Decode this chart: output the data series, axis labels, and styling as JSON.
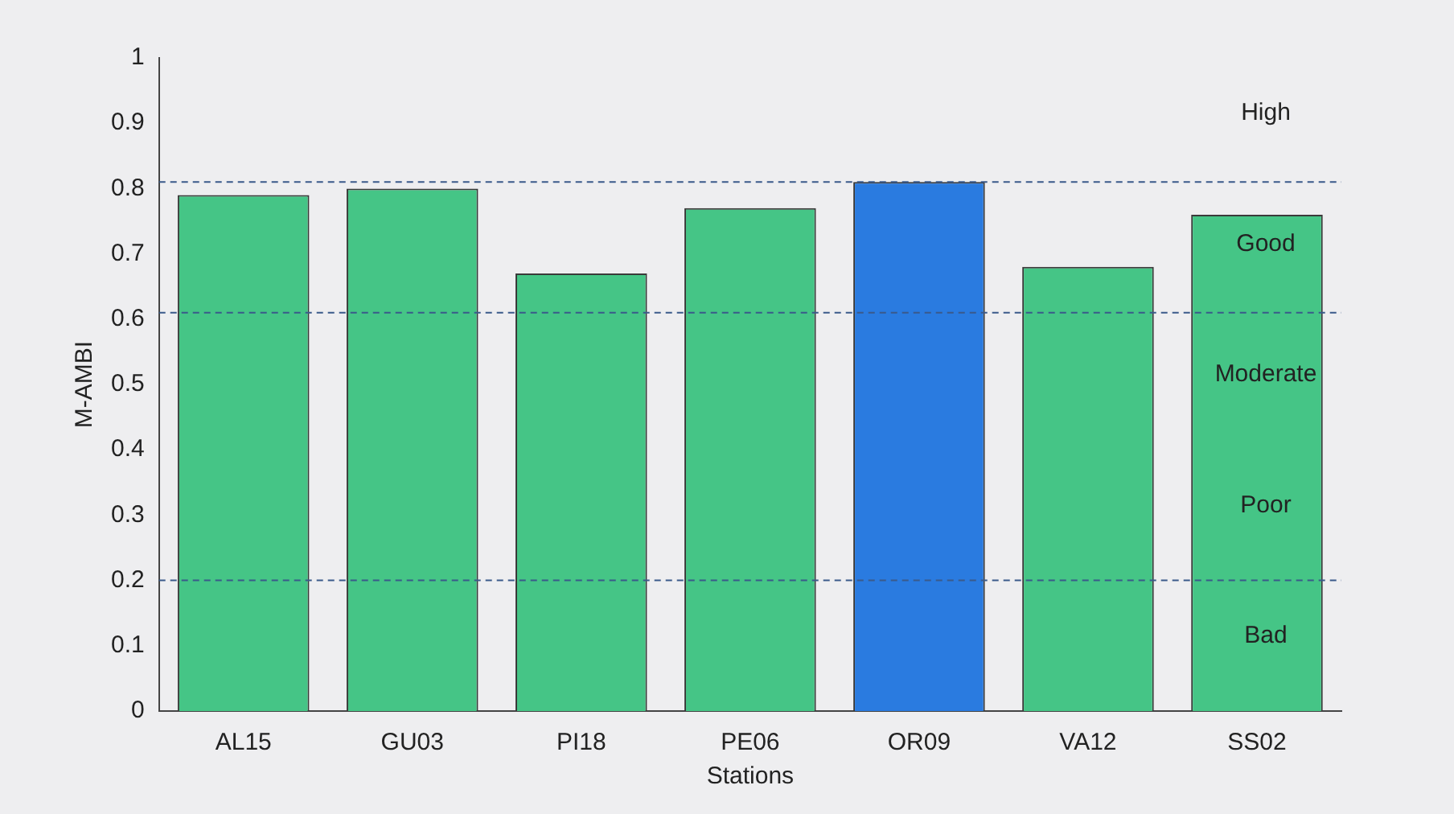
{
  "chart_data": {
    "type": "bar",
    "ylabel": "M-AMBI",
    "xlabel": "Stations",
    "categories": [
      "AL15",
      "GU03",
      "PI18",
      "PE06",
      "OR09",
      "VA12",
      "SS02"
    ],
    "values": [
      0.79,
      0.8,
      0.67,
      0.77,
      0.81,
      0.68,
      0.76
    ],
    "colors": [
      "#45c586",
      "#45c586",
      "#45c586",
      "#45c586",
      "#2a7be0",
      "#45c586",
      "#45c586"
    ],
    "ylim": [
      0,
      1
    ],
    "yticks": [
      0,
      0.1,
      0.2,
      0.3,
      0.4,
      0.5,
      0.6,
      0.7,
      0.8,
      0.9,
      1
    ],
    "grid": false,
    "legend": false,
    "ref_lines": [
      {
        "axis": "y",
        "value": 0.81,
        "color": "#3a5a8a",
        "line_style": "dashed"
      },
      {
        "axis": "y",
        "value": 0.61,
        "color": "#3a5a8a",
        "line_style": "dashed"
      },
      {
        "axis": "y",
        "value": 0.2,
        "color": "#3a5a8a",
        "line_style": "dashed"
      }
    ],
    "annotations": [
      "High",
      "Good",
      "Moderate",
      "Poor",
      "Bad"
    ]
  }
}
